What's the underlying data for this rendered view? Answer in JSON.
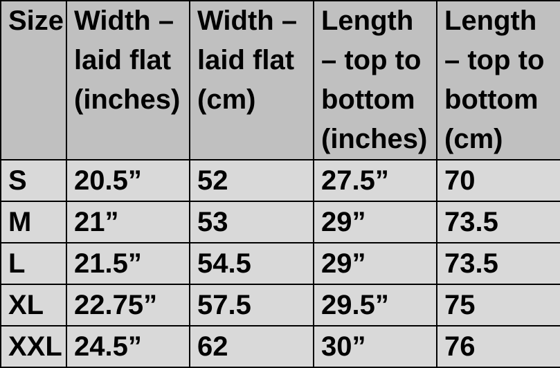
{
  "table": {
    "headers": [
      [
        "Size"
      ],
      [
        "Width –",
        "laid flat",
        "(inches)"
      ],
      [
        "Width –",
        "laid flat",
        "(cm)"
      ],
      [
        "Length",
        "– top to",
        "bottom",
        "(inches)"
      ],
      [
        "Length",
        "– top to",
        "bottom",
        "(cm)"
      ]
    ],
    "rows": [
      [
        "S",
        "20.5”",
        "52",
        "27.5”",
        "70"
      ],
      [
        "M",
        "21”",
        "53",
        "29”",
        "73.5"
      ],
      [
        "L",
        "21.5”",
        "54.5",
        "29”",
        "73.5"
      ],
      [
        "XL",
        "22.75”",
        "57.5",
        "29.5”",
        "75"
      ],
      [
        "XXL",
        "24.5”",
        "62",
        "30”",
        "76"
      ]
    ]
  },
  "colors": {
    "header_bg": "#c0c0c0",
    "body_bg": "#d9d9d9",
    "border": "#000000"
  }
}
